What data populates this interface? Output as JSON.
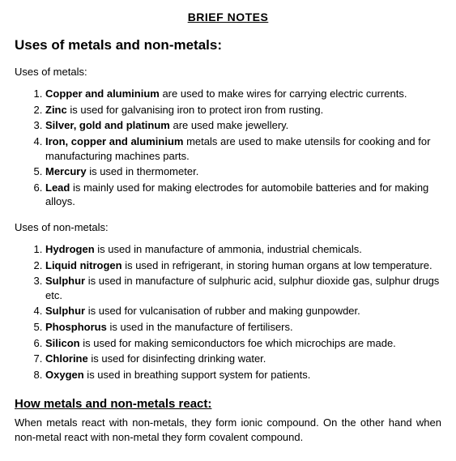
{
  "doc_title": "BRIEF NOTES",
  "main_heading": "Uses of metals and non-metals:",
  "metals": {
    "heading": "Uses of metals:",
    "items": [
      {
        "bold": "Copper and aluminium",
        "rest": " are used to make wires for carrying electric currents."
      },
      {
        "bold": "Zinc",
        "rest": " is used for galvanising iron to protect iron from rusting."
      },
      {
        "bold": "Silver, gold and platinum",
        "rest": " are used make jewellery."
      },
      {
        "bold": "Iron, copper and aluminium",
        "rest": " metals are used to make utensils for cooking and for manufacturing machines parts."
      },
      {
        "bold": "Mercury",
        "rest": " is used in thermometer."
      },
      {
        "bold": "Lead",
        "rest": " is mainly used for making electrodes for automobile batteries and for making alloys."
      }
    ]
  },
  "nonmetals": {
    "heading": "Uses of non-metals:",
    "items": [
      {
        "bold": "Hydrogen",
        "rest": " is used in manufacture of ammonia, industrial chemicals."
      },
      {
        "bold": "Liquid nitrogen",
        "rest": " is used in refrigerant, in storing human organs at low temperature."
      },
      {
        "bold": "Sulphur",
        "rest": " is used in manufacture of sulphuric acid, sulphur dioxide gas, sulphur drugs etc."
      },
      {
        "bold": "Sulphur",
        "rest": " is used for vulcanisation of rubber and making gunpowder."
      },
      {
        "bold": "Phosphorus",
        "rest": " is used in the manufacture of fertilisers."
      },
      {
        "bold": "Silicon",
        "rest": " is used for making semiconductors foe which microchips are made."
      },
      {
        "bold": "Chlorine",
        "rest": " is used for disinfecting drinking water."
      },
      {
        "bold": "Oxygen",
        "rest": " is used in breathing support system for patients."
      }
    ]
  },
  "reaction": {
    "heading": "How metals and non-metals react:",
    "para": "When metals react with non-metals, they form ionic compound. On the other hand when non-metal react with non-metal they form covalent compound."
  }
}
